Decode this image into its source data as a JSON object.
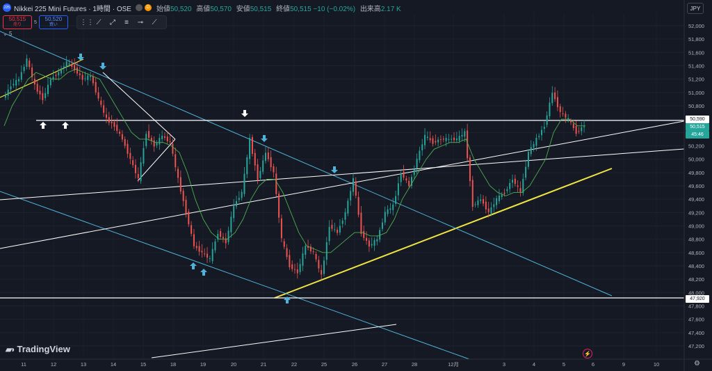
{
  "header": {
    "symbol_badge": "225",
    "title": "Nikkei 225 Mini Futures · 1時間 · OSE",
    "ohlc": [
      {
        "k": "始値",
        "v": "50,520"
      },
      {
        "k": "高値",
        "v": "50,570"
      },
      {
        "k": "安値",
        "v": "50,515"
      },
      {
        "k": "終値",
        "v": "50,515 −10 (−0.02%)"
      },
      {
        "k": "出来高",
        "v": "2.17 K"
      }
    ]
  },
  "trade": {
    "sell_price": "50,515",
    "sell_label": "売り",
    "qty": "5",
    "buy_price": "50,520",
    "buy_label": "買い"
  },
  "indicator_label": "5",
  "currency": "JPY",
  "watermark": "TradingView",
  "price_tags": {
    "line_upper": "50,590",
    "current": "50,515",
    "countdown": "45:46",
    "line_lower": "47,920"
  },
  "colors": {
    "background": "#151924",
    "up": "#26a69a",
    "down": "#ef5350",
    "ma": "#4caf50",
    "trend_blue": "#4fb3d9",
    "trend_yellow": "#f0e442",
    "arrow_blue": "#4fb3d9"
  },
  "chart_data": {
    "type": "line",
    "y_axis": {
      "min": 47100,
      "max": 52200,
      "ticks": [
        52000,
        51800,
        51600,
        51400,
        51200,
        51000,
        50800,
        50600,
        50400,
        50200,
        50000,
        49800,
        49600,
        49400,
        49200,
        49000,
        48800,
        48600,
        48400,
        48200,
        48000,
        47800,
        47600,
        47400,
        47200
      ],
      "tick_labels": [
        "52,000",
        "51,800",
        "51,600",
        "51,400",
        "51,200",
        "51,000",
        "50,800",
        "50,600",
        "50,400",
        "50,200",
        "50,000",
        "49,800",
        "49,600",
        "49,400",
        "49,200",
        "49,000",
        "48,800",
        "48,600",
        "48,400",
        "48,200",
        "48,000",
        "47,800",
        "47,600",
        "47,400",
        "47,200"
      ]
    },
    "x_axis": {
      "labels": [
        "11",
        "12",
        "13",
        "14",
        "15",
        "18",
        "19",
        "20",
        "21",
        "22",
        "25",
        "26",
        "27",
        "28",
        "12月",
        "3",
        "4",
        "5",
        "6",
        "9",
        "10"
      ]
    },
    "price_path": [
      50900,
      51100,
      51200,
      51500,
      51100,
      50900,
      51200,
      51300,
      51450,
      51350,
      51200,
      51250,
      50900,
      50600,
      50500,
      50300,
      50000,
      49700,
      50400,
      50200,
      50350,
      50250,
      49700,
      49200,
      48700,
      48600,
      48500,
      48900,
      48750,
      49300,
      49500,
      50300,
      49700,
      50100,
      49800,
      48800,
      48400,
      48300,
      48700,
      48600,
      48250,
      49000,
      48900,
      49200,
      49700,
      48900,
      48700,
      48800,
      49200,
      49300,
      49800,
      49600,
      50000,
      50350,
      50250,
      50300,
      50300,
      50300,
      50400,
      49300,
      49400,
      49200,
      49400,
      49500,
      49700,
      49500,
      50100,
      50300,
      50500,
      51000,
      50700,
      50600,
      50400,
      50500
    ],
    "ma_path": [
      50500,
      50800,
      51000,
      51200,
      51300,
      51250,
      51200,
      51200,
      51300,
      51350,
      51300,
      51250,
      51200,
      51000,
      50800,
      50600,
      50400,
      50300,
      50300,
      50250,
      50250,
      50200,
      50100,
      49800,
      49400,
      49100,
      48900,
      48800,
      48800,
      48900,
      49100,
      49400,
      49600,
      49700,
      49700,
      49500,
      49200,
      48900,
      48700,
      48650,
      48600,
      48600,
      48700,
      48800,
      48900,
      48900,
      48850,
      48850,
      48900,
      49100,
      49400,
      49600,
      49800,
      50000,
      50150,
      50200,
      50250,
      50250,
      50300,
      50000,
      49800,
      49600,
      49500,
      49450,
      49500,
      49500,
      49600,
      49800,
      50000,
      50400,
      50600,
      50600,
      50500,
      50500
    ]
  }
}
